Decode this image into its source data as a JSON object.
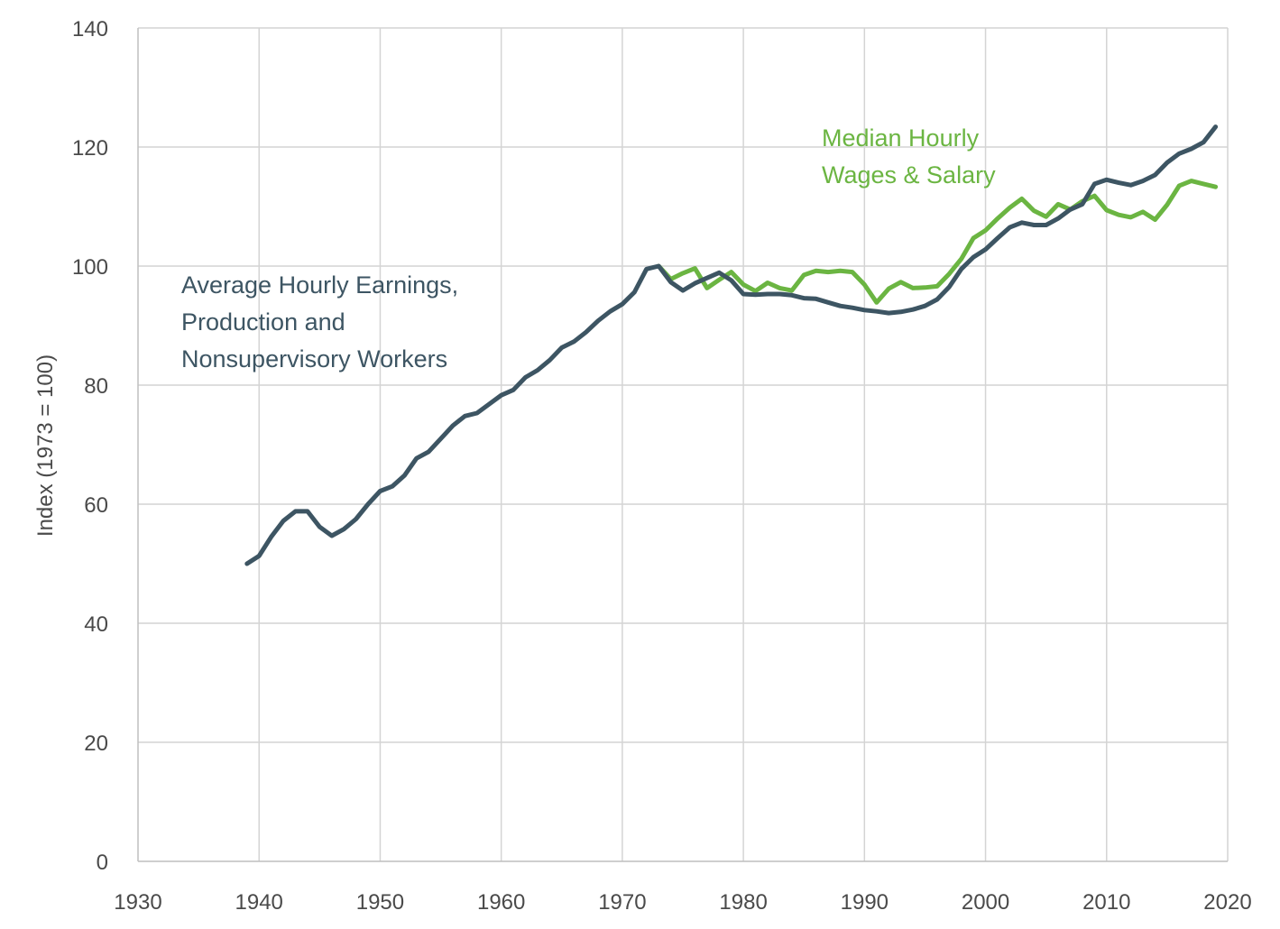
{
  "chart_data": {
    "type": "line",
    "xlabel": "",
    "ylabel": "Index (1973 = 100)",
    "xlim": [
      1930,
      2020
    ],
    "ylim": [
      0,
      140
    ],
    "x_ticks": [
      "1930",
      "1940",
      "1950",
      "1960",
      "1970",
      "1980",
      "1990",
      "2000",
      "2010",
      "2020"
    ],
    "y_ticks": [
      "0",
      "20",
      "40",
      "60",
      "80",
      "100",
      "120",
      "140"
    ],
    "grid": true,
    "series": [
      {
        "name": "Average Hourly Earnings, Production and Nonsupervisory Workers",
        "label_lines": [
          "Average Hourly Earnings,",
          "Production and",
          "Nonsupervisory Workers"
        ],
        "color": "#3d5563",
        "x": [
          1939,
          1940,
          1941,
          1942,
          1943,
          1944,
          1945,
          1946,
          1947,
          1948,
          1949,
          1950,
          1951,
          1952,
          1953,
          1954,
          1955,
          1956,
          1957,
          1958,
          1959,
          1960,
          1961,
          1962,
          1963,
          1964,
          1965,
          1966,
          1967,
          1968,
          1969,
          1970,
          1971,
          1972,
          1973,
          1974,
          1975,
          1976,
          1977,
          1978,
          1979,
          1980,
          1981,
          1982,
          1983,
          1984,
          1985,
          1986,
          1987,
          1988,
          1989,
          1990,
          1991,
          1992,
          1993,
          1994,
          1995,
          1996,
          1997,
          1998,
          1999,
          2000,
          2001,
          2002,
          2003,
          2004,
          2005,
          2006,
          2007,
          2008,
          2009,
          2010,
          2011,
          2012,
          2013,
          2014,
          2015,
          2016,
          2017,
          2018,
          2019
        ],
        "y": [
          50,
          51.3,
          54.5,
          57.2,
          58.8,
          58.8,
          56.2,
          54.7,
          55.8,
          57.5,
          60,
          62.2,
          63,
          64.8,
          67.7,
          68.8,
          71,
          73.2,
          74.8,
          75.3,
          76.8,
          78.3,
          79.2,
          81.3,
          82.5,
          84.2,
          86.3,
          87.3,
          88.9,
          90.8,
          92.4,
          93.6,
          95.6,
          99.5,
          100,
          97.3,
          95.9,
          97.1,
          98,
          98.9,
          97.6,
          95.3,
          95.2,
          95.3,
          95.3,
          95.1,
          94.6,
          94.5,
          93.9,
          93.3,
          93,
          92.6,
          92.4,
          92.1,
          92.3,
          92.7,
          93.3,
          94.4,
          96.5,
          99.5,
          101.5,
          102.8,
          104.7,
          106.5,
          107.3,
          106.9,
          106.9,
          108,
          109.5,
          110.4,
          113.8,
          114.5,
          114,
          113.6,
          114.3,
          115.3,
          117.4,
          118.9,
          119.7,
          120.8,
          123.4
        ]
      },
      {
        "name": "Median Hourly Wages & Salary",
        "label_lines": [
          "Median Hourly",
          "Wages & Salary"
        ],
        "color": "#6bb542",
        "x": [
          1973,
          1974,
          1975,
          1976,
          1977,
          1978,
          1979,
          1980,
          1981,
          1982,
          1983,
          1984,
          1985,
          1986,
          1987,
          1988,
          1989,
          1990,
          1991,
          1992,
          1993,
          1994,
          1995,
          1996,
          1997,
          1998,
          1999,
          2000,
          2001,
          2002,
          2003,
          2004,
          2005,
          2006,
          2007,
          2008,
          2009,
          2010,
          2011,
          2012,
          2013,
          2014,
          2015,
          2016,
          2017,
          2018,
          2019
        ],
        "y": [
          100,
          97.8,
          98.8,
          99.6,
          96.3,
          97.7,
          99,
          96.9,
          95.8,
          97.2,
          96.3,
          95.9,
          98.5,
          99.2,
          99,
          99.2,
          99,
          96.9,
          93.9,
          96.2,
          97.3,
          96.3,
          96.4,
          96.6,
          98.7,
          101.2,
          104.7,
          106,
          108,
          109.8,
          111.3,
          109.3,
          108.3,
          110.4,
          109.5,
          110.9,
          111.8,
          109.4,
          108.6,
          108.2,
          109.1,
          107.8,
          110.3,
          113.5,
          114.3,
          113.8,
          113.3
        ]
      }
    ]
  }
}
